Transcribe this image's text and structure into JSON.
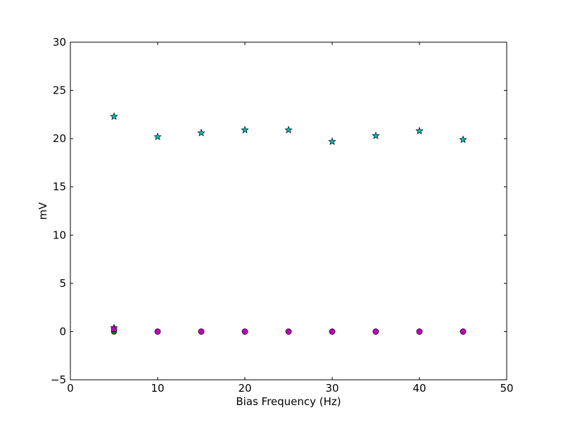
{
  "chart_data": {
    "type": "scatter",
    "title": "",
    "xlabel": "Bias Frequency (Hz)",
    "ylabel": "mV",
    "xlim": [
      0,
      50
    ],
    "ylim": [
      -5,
      30
    ],
    "xticks": [
      0,
      10,
      20,
      30,
      40,
      50
    ],
    "yticks": [
      -5,
      0,
      5,
      10,
      15,
      20,
      25,
      30
    ],
    "xtick_labels": [
      "0",
      "10",
      "20",
      "30",
      "40",
      "50"
    ],
    "ytick_labels": [
      "−5",
      "0",
      "5",
      "10",
      "15",
      "20",
      "25",
      "30"
    ],
    "grid": false,
    "legend": "none",
    "series": [
      {
        "marker": "star",
        "color": "#ff0000",
        "x": [
          5,
          10,
          15,
          20,
          25,
          30,
          35,
          40,
          45
        ],
        "y": [
          22.3,
          20.2,
          20.6,
          20.9,
          20.9,
          19.7,
          20.3,
          20.8,
          19.9
        ]
      },
      {
        "marker": "star",
        "color": "#00bfbf",
        "x": [
          5,
          10,
          15,
          20,
          25,
          30,
          35,
          40,
          45
        ],
        "y": [
          22.3,
          20.2,
          20.6,
          20.9,
          20.9,
          19.7,
          20.3,
          20.8,
          19.9
        ]
      },
      {
        "marker": "circle",
        "color": "#008000",
        "x": [
          5,
          10,
          15,
          20,
          25,
          30,
          35,
          40,
          45
        ],
        "y": [
          0.0,
          0.0,
          0.0,
          0.0,
          0.0,
          0.0,
          0.0,
          0.0,
          0.0
        ]
      },
      {
        "marker": "star",
        "color": "#0000ff",
        "x": [
          5
        ],
        "y": [
          0.4
        ]
      },
      {
        "marker": "circle",
        "color": "#bf00bf",
        "x": [
          5,
          10,
          15,
          20,
          25,
          30,
          35,
          40,
          45
        ],
        "y": [
          0.25,
          0.0,
          0.0,
          0.0,
          0.0,
          0.0,
          0.0,
          0.0,
          0.0
        ]
      }
    ]
  }
}
